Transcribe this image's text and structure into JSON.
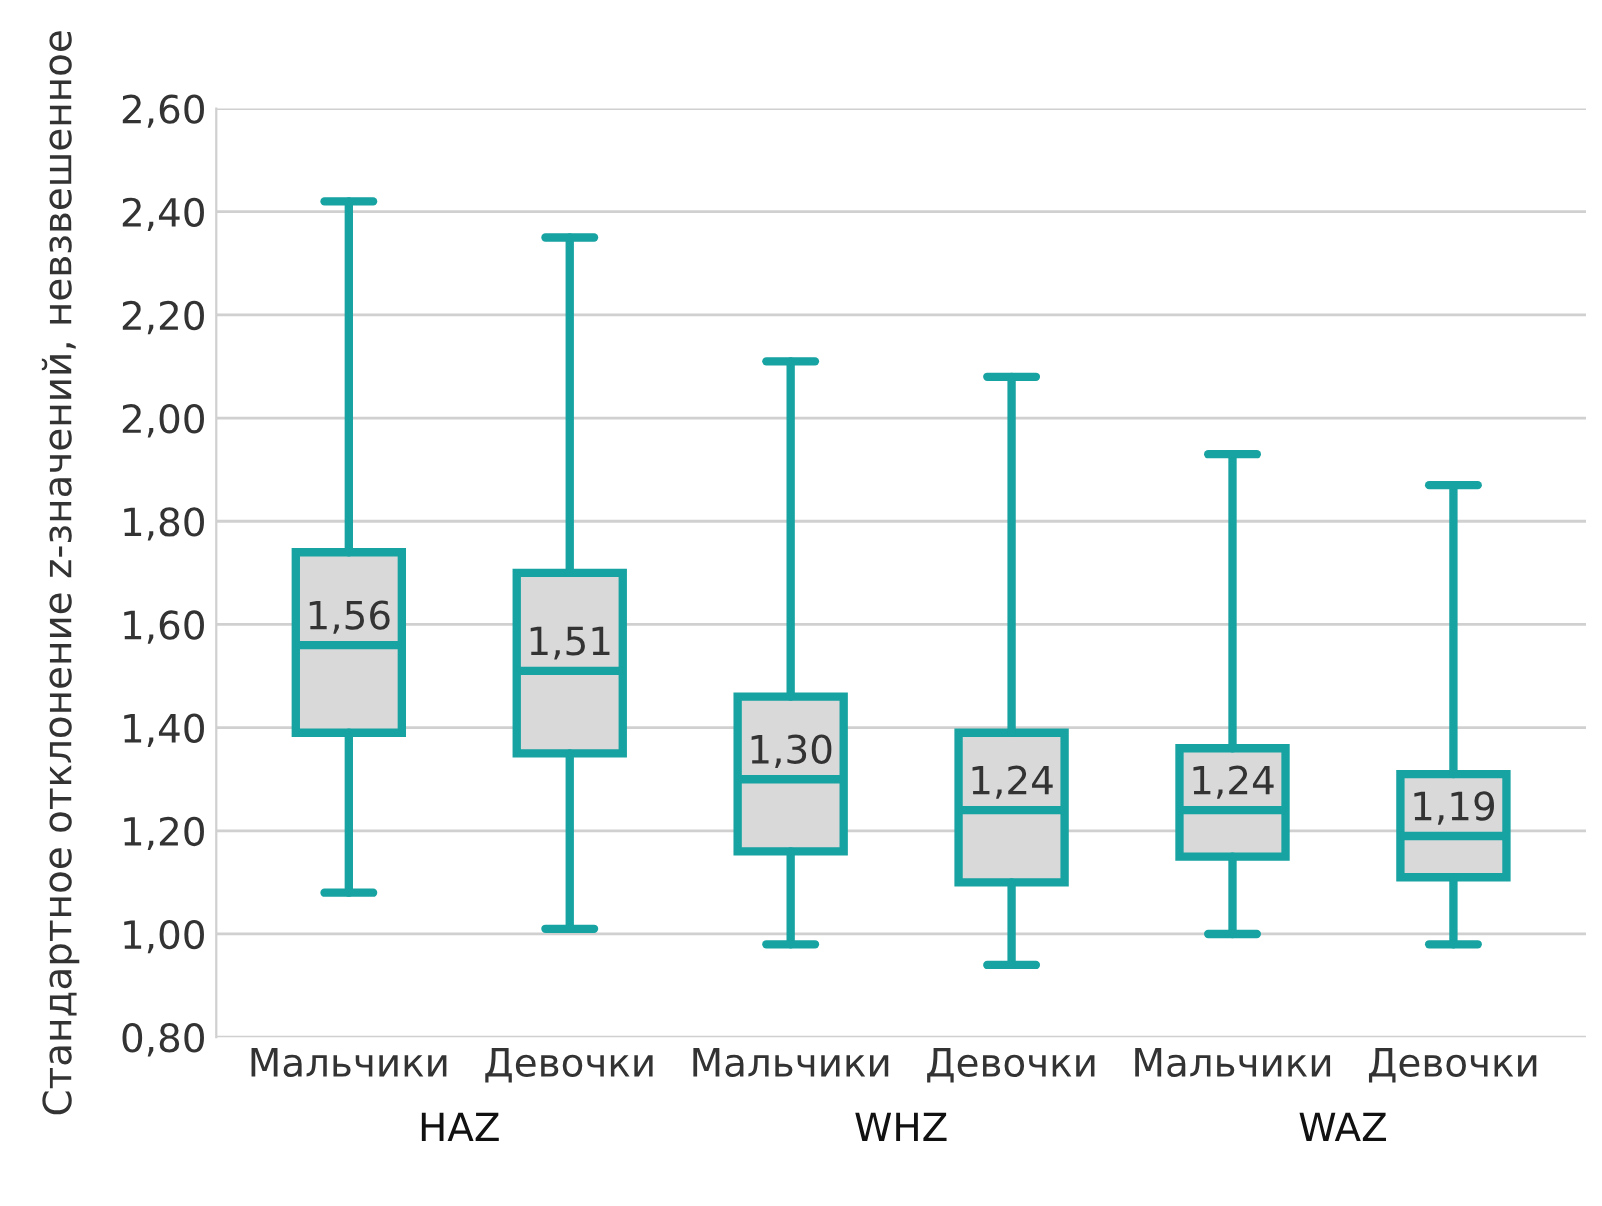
{
  "chart_data": {
    "type": "box",
    "ylabel": "Стандартное отклонение z-значений, невзвешенное",
    "categories": [
      "Мальчики",
      "Девочки",
      "Мальчики",
      "Девочки",
      "Мальчики",
      "Девочки"
    ],
    "boxes": [
      {
        "low": 1.08,
        "q1": 1.39,
        "median": 1.56,
        "q3": 1.74,
        "high": 2.42
      },
      {
        "low": 1.01,
        "q1": 1.35,
        "median": 1.51,
        "q3": 1.7,
        "high": 2.35
      },
      {
        "low": 0.98,
        "q1": 1.16,
        "median": 1.3,
        "q3": 1.46,
        "high": 2.11
      },
      {
        "low": 0.94,
        "q1": 1.1,
        "median": 1.24,
        "q3": 1.39,
        "high": 2.08
      },
      {
        "low": 1.0,
        "q1": 1.15,
        "median": 1.24,
        "q3": 1.36,
        "high": 1.93
      },
      {
        "low": 0.98,
        "q1": 1.11,
        "median": 1.19,
        "q3": 1.31,
        "high": 1.87
      }
    ],
    "value_labels": [
      "1,56",
      "1,51",
      "1,30",
      "1,24",
      "1,24",
      "1,19"
    ],
    "color": "#17a3a1",
    "annotations": [
      "HAZ",
      "WHZ",
      "WAZ"
    ],
    "ylim": [
      0.8,
      2.6
    ],
    "yticks": [
      {
        "value": 0.8,
        "label": "0,80"
      },
      {
        "value": 1.0,
        "label": "1,00"
      },
      {
        "value": 1.2,
        "label": "1,20"
      },
      {
        "value": 1.4,
        "label": "1,40"
      },
      {
        "value": 1.6,
        "label": "1,60"
      },
      {
        "value": 1.8,
        "label": "1,80"
      },
      {
        "value": 2.0,
        "label": "2,00"
      },
      {
        "value": 2.2,
        "label": "2,20"
      },
      {
        "value": 2.4,
        "label": "2,40"
      },
      {
        "value": 2.6,
        "label": "2,60"
      }
    ],
    "grid": "y",
    "legend": false
  }
}
